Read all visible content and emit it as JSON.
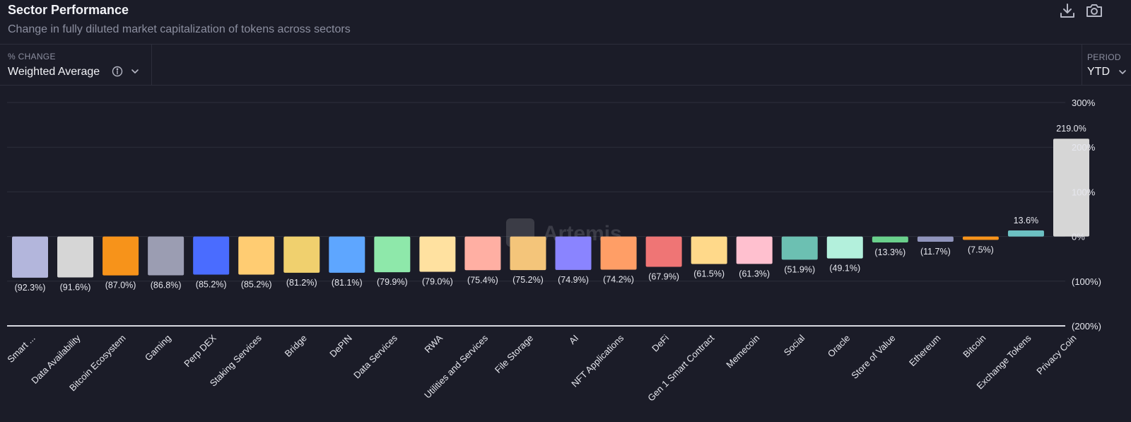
{
  "header": {
    "title": "Sector Performance",
    "subtitle": "Change in fully diluted market capitalization of tokens across sectors",
    "download_icon": "download-icon",
    "screenshot_icon": "camera-icon"
  },
  "controls": {
    "metric": {
      "label": "% CHANGE",
      "value": "Weighted Average",
      "info_icon": "info-icon",
      "chevron_icon": "chevron-down-icon"
    },
    "period": {
      "label": "PERIOD",
      "value": "YTD",
      "chevron_icon": "chevron-down-icon"
    }
  },
  "watermark": "Artemis",
  "colors": {
    "background": "#1b1c28",
    "grid": "#2c2e3b",
    "axis": "#d8d9e0",
    "text": "#e6e7ee",
    "muted": "#8c8fa0"
  },
  "chart_data": {
    "type": "bar",
    "title": "Sector Performance",
    "ylim": [
      -200,
      300
    ],
    "yticks": [
      300,
      200,
      100,
      0,
      -100,
      -200
    ],
    "ytick_labels": [
      "300%",
      "200%",
      "100%",
      "0%",
      "(100%)",
      "(200%)"
    ],
    "grid": true,
    "categories": [
      "Smart ...",
      "Data Availability",
      "Bitcoin Ecosystem",
      "Gaming",
      "Perp DEX",
      "Staking Services",
      "Bridge",
      "DePIN",
      "Data Services",
      "RWA",
      "Utilities and Services",
      "File Storage",
      "AI",
      "NFT Applications",
      "DeFi",
      "Gen 1 Smart Contract",
      "Memecoin",
      "Social",
      "Oracle",
      "Store of Value",
      "Ethereum",
      "Bitcoin",
      "Exchange Tokens",
      "Privacy Coin"
    ],
    "values": [
      -92.3,
      -91.6,
      -87.0,
      -86.8,
      -85.2,
      -85.2,
      -81.2,
      -81.1,
      -79.9,
      -79.0,
      -75.4,
      -75.2,
      -74.9,
      -74.2,
      -67.9,
      -61.5,
      -61.3,
      -51.9,
      -49.1,
      -13.3,
      -11.7,
      -7.5,
      13.6,
      219.0
    ],
    "value_labels": [
      "(92.3%)",
      "(91.6%)",
      "(87.0%)",
      "(86.8%)",
      "(85.2%)",
      "(85.2%)",
      "(81.2%)",
      "(81.1%)",
      "(79.9%)",
      "(79.0%)",
      "(75.4%)",
      "(75.2%)",
      "(74.9%)",
      "(74.2%)",
      "(67.9%)",
      "(61.5%)",
      "(61.3%)",
      "(51.9%)",
      "(49.1%)",
      "(13.3%)",
      "(11.7%)",
      "(7.5%)",
      "13.6%",
      "219.0%"
    ],
    "colors": [
      "#b3b6dc",
      "#d6d6d6",
      "#f7931a",
      "#9b9db2",
      "#4a6cff",
      "#ffcc72",
      "#f0d06e",
      "#5ea6ff",
      "#8ee8aa",
      "#ffe1a0",
      "#ffafa3",
      "#f4c57a",
      "#8a84ff",
      "#ff9e66",
      "#ef7575",
      "#ffd98a",
      "#ffc0cf",
      "#6cc0b2",
      "#b3f0dc",
      "#6ad08c",
      "#9094bc",
      "#f7931a",
      "#6cc0c2",
      "#d6d6d6"
    ]
  }
}
